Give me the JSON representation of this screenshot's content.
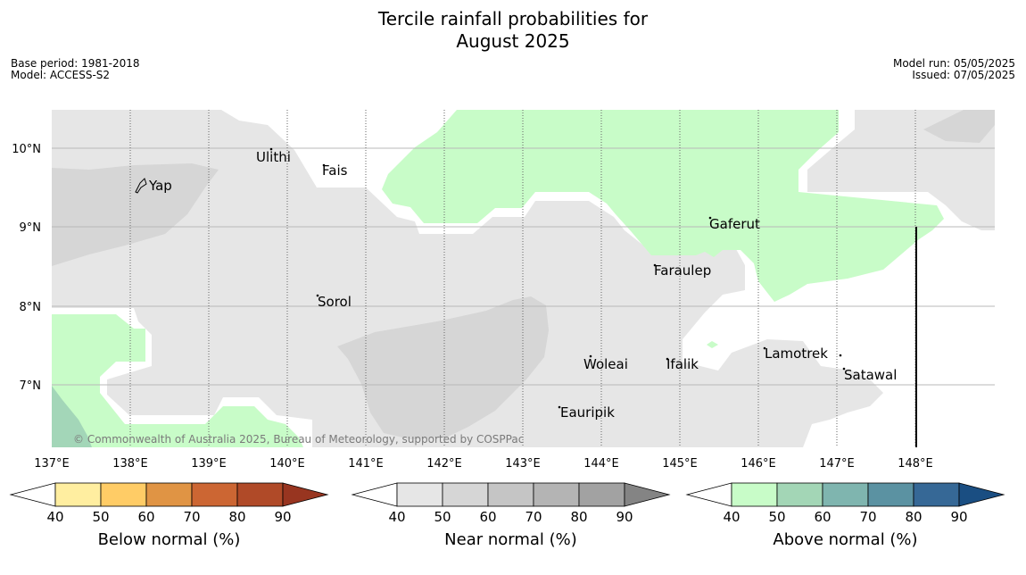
{
  "title": {
    "line1": "Tercile rainfall probabilities for",
    "line2": "August 2025"
  },
  "meta_left": {
    "base_period": "Base period: 1981-2018",
    "model": "Model: ACCESS-S2"
  },
  "meta_right": {
    "model_run": "Model run: 05/05/2025",
    "issued": "Issued: 07/05/2025"
  },
  "map": {
    "lat_labels": [
      "10°N",
      "9°N",
      "8°N",
      "7°N"
    ],
    "lon_labels": [
      "137°E",
      "138°E",
      "139°E",
      "140°E",
      "141°E",
      "142°E",
      "143°E",
      "144°E",
      "145°E",
      "146°E",
      "147°E",
      "148°E"
    ],
    "places": [
      "Yap",
      "Ulithi",
      "Fais",
      "Gaferut",
      "Faraulep",
      "Sorol",
      "Woleai",
      "Ifalik",
      "Lamotrek",
      "Satawal",
      "Eauripik"
    ],
    "copyright": "© Commonwealth of Australia 2025, Bureau of Meteorology, supported by COSPPac",
    "colors": {
      "near_normal_40": "#e6e6e6",
      "near_normal_50": "#d6d6d6",
      "above_normal_50": "#c8fcc8",
      "above_normal_60": "#a3d6b8"
    }
  },
  "colorbars": [
    {
      "label": "Below normal (%)",
      "ticks": [
        "40",
        "50",
        "60",
        "70",
        "80",
        "90"
      ],
      "colors": [
        "#ffeea0",
        "#ffcc66",
        "#e09444",
        "#cc6633",
        "#b04a28",
        "#983520"
      ]
    },
    {
      "label": "Near normal (%)",
      "ticks": [
        "40",
        "50",
        "60",
        "70",
        "80",
        "90"
      ],
      "colors": [
        "#e6e6e6",
        "#d6d6d6",
        "#c5c5c5",
        "#b4b4b4",
        "#a2a2a2",
        "#848484"
      ]
    },
    {
      "label": "Above normal (%)",
      "ticks": [
        "40",
        "50",
        "60",
        "70",
        "80",
        "90"
      ],
      "colors": [
        "#c8fcc8",
        "#a3d6b6",
        "#7fb5af",
        "#5b92a2",
        "#366896",
        "#1a4e82"
      ]
    }
  ]
}
